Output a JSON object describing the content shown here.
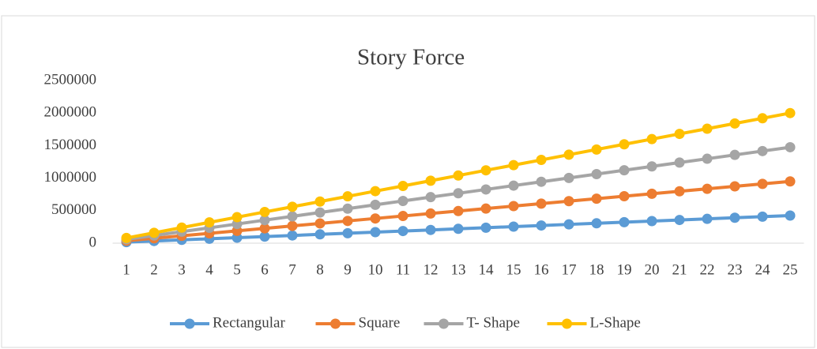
{
  "chart_data": {
    "type": "line",
    "title": "Story Force",
    "categories": [
      "1",
      "2",
      "3",
      "4",
      "5",
      "6",
      "7",
      "8",
      "9",
      "10",
      "11",
      "12",
      "13",
      "14",
      "15",
      "16",
      "17",
      "18",
      "19",
      "20",
      "21",
      "22",
      "23",
      "24",
      "25"
    ],
    "series": [
      {
        "name": "Rectangular",
        "color": "#5b9bd5",
        "values": [
          17000,
          34000,
          51000,
          68000,
          85000,
          102000,
          119000,
          136000,
          153000,
          170000,
          187000,
          204000,
          221000,
          238000,
          255000,
          272000,
          289000,
          306000,
          323000,
          340000,
          357000,
          374000,
          391000,
          408000,
          425000
        ]
      },
      {
        "name": "Square",
        "color": "#ed7d31",
        "values": [
          38000,
          76000,
          114000,
          152000,
          190000,
          228000,
          266000,
          304000,
          342000,
          380000,
          418000,
          456000,
          494000,
          532000,
          570000,
          608000,
          646000,
          684000,
          722000,
          760000,
          798000,
          836000,
          874000,
          912000,
          950000
        ]
      },
      {
        "name": "T- Shape",
        "color": "#a5a5a5",
        "values": [
          59000,
          118000,
          177000,
          236000,
          295000,
          354000,
          413000,
          472000,
          531000,
          590000,
          649000,
          708000,
          767000,
          826000,
          885000,
          944000,
          1003000,
          1062000,
          1121000,
          1180000,
          1239000,
          1298000,
          1357000,
          1416000,
          1475000
        ]
      },
      {
        "name": "L-Shape",
        "color": "#ffc000",
        "values": [
          80000,
          160000,
          240000,
          320000,
          400000,
          480000,
          560000,
          640000,
          720000,
          800000,
          880000,
          960000,
          1040000,
          1120000,
          1200000,
          1280000,
          1360000,
          1440000,
          1520000,
          1600000,
          1680000,
          1760000,
          1840000,
          1920000,
          2000000
        ]
      }
    ],
    "ylim": [
      0,
      2500000
    ],
    "yticks": [
      0,
      500000,
      1000000,
      1500000,
      2000000,
      2500000
    ],
    "grid": false,
    "legend": "bottom"
  }
}
